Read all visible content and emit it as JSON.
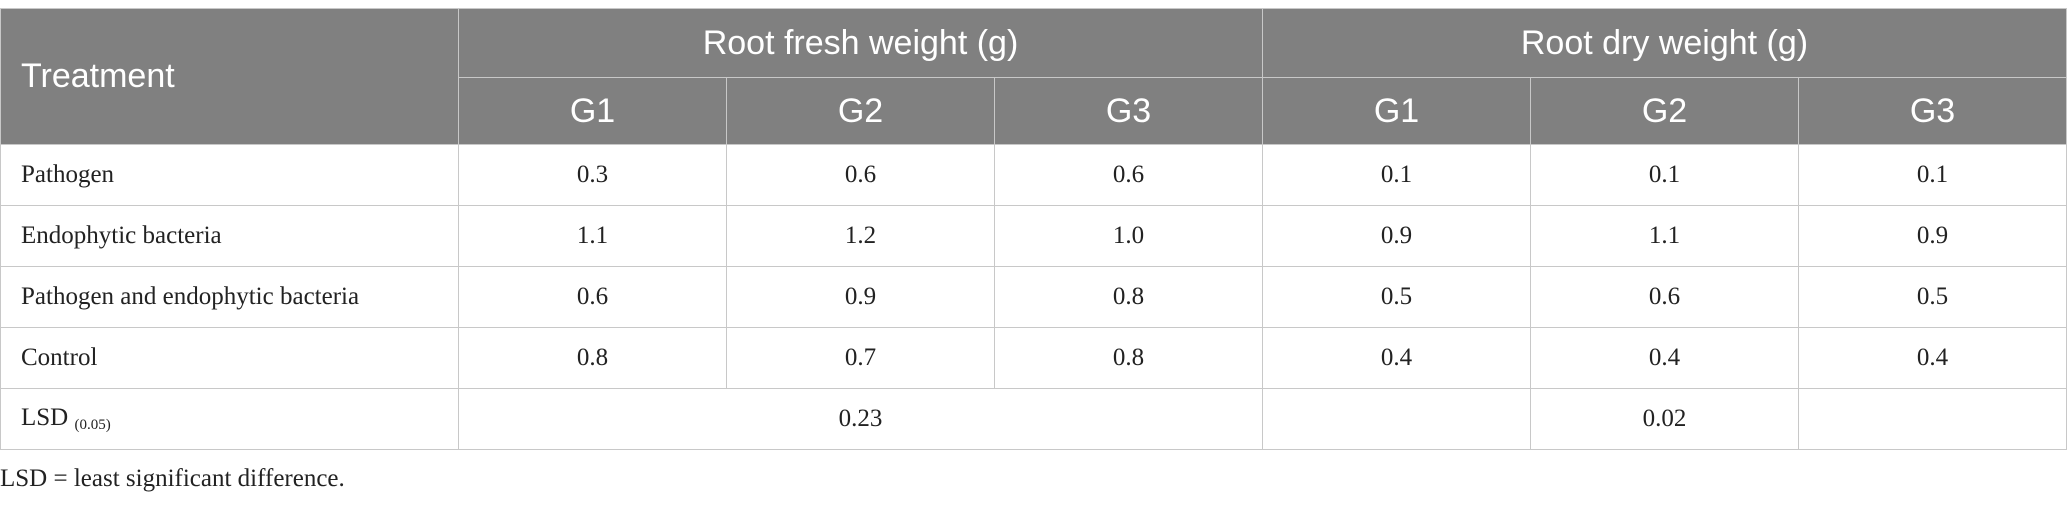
{
  "table": {
    "treatment_header": "Treatment",
    "groups": [
      {
        "label": "Root fresh weight (g)"
      },
      {
        "label": "Root dry weight (g)"
      }
    ],
    "subheaders": [
      "G1",
      "G2",
      "G3",
      "G1",
      "G2",
      "G3"
    ],
    "rows": [
      {
        "label": "Pathogen",
        "values": [
          "0.3",
          "0.6",
          "0.6",
          "0.1",
          "0.1",
          "0.1"
        ]
      },
      {
        "label": "Endophytic bacteria",
        "values": [
          "1.1",
          "1.2",
          "1.0",
          "0.9",
          "1.1",
          "0.9"
        ]
      },
      {
        "label": "Pathogen and endophytic bacteria",
        "values": [
          "0.6",
          "0.9",
          "0.8",
          "0.5",
          "0.6",
          "0.5"
        ]
      },
      {
        "label": "Control",
        "values": [
          "0.8",
          "0.7",
          "0.8",
          "0.4",
          "0.4",
          "0.4"
        ]
      }
    ],
    "lsd": {
      "label": "LSD",
      "subscript": "(0.05)",
      "fresh_value": "0.23",
      "dry_empty_left": "",
      "dry_value": "0.02",
      "dry_empty_right": ""
    }
  },
  "footnote": "LSD = least significant difference."
}
